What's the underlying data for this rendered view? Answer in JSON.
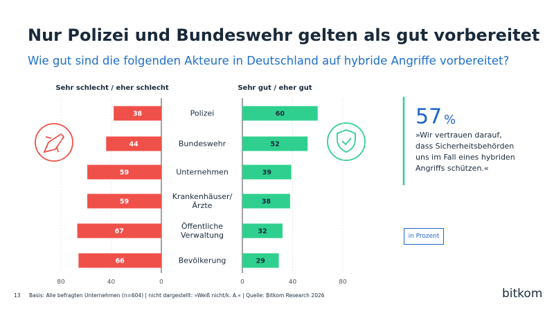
{
  "title": "Nur Polizei und Bundeswehr gelten als gut vorbereitet",
  "subtitle": "Wie gut sind die folgenden Akteure in Deutschland auf hybride Angriffe vorbereitet?",
  "chart_data": {
    "type": "diverging_bar",
    "categories": [
      "Polizei",
      "Bundeswehr",
      "Unternehmen",
      "Krankenhäuser/\nÄrzte",
      "Öffentliche\nVerwaltung",
      "Bevölkerung"
    ],
    "series": [
      {
        "name": "Sehr schlecht / eher schlecht",
        "color": "#f0504a",
        "side": "left",
        "values": [
          38,
          44,
          59,
          59,
          67,
          66
        ]
      },
      {
        "name": "Sehr gut / eher gut",
        "color": "#2fd08f",
        "side": "right",
        "values": [
          60,
          52,
          39,
          38,
          32,
          29
        ]
      }
    ],
    "xlim": [
      0,
      80
    ],
    "xticks": [
      0,
      40,
      80
    ],
    "grid": true
  },
  "callout": {
    "value": 57,
    "unit": "%",
    "quote": "»Wir vertrauen darauf,\ndass Sicherheitsbehörden\nuns im Fall eines hybriden\nAngriffs schützen.«"
  },
  "unit_note": "in Prozent",
  "footer": {
    "page": "13",
    "source": "Basis: Alle befragten Unternehmen (n=604) | nicht dargestellt: »Weiß nicht/k. A.« | Quelle: Bitkom Research 2026",
    "logo": "bitkom"
  }
}
